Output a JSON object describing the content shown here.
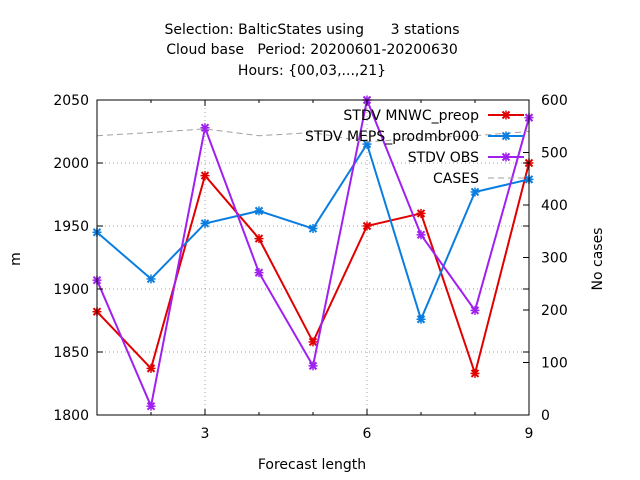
{
  "chart_data": {
    "type": "line",
    "title": [
      "Selection: BalticStates using      3 stations",
      "Cloud base   Period: 20200601-20200630",
      "Hours: {00,03,...,21}"
    ],
    "xlabel": "Forecast length",
    "ylabel": "m",
    "y2label": "No cases",
    "xlim": [
      1,
      9
    ],
    "ylim": [
      1800,
      2050
    ],
    "y2lim": [
      0,
      600
    ],
    "xticks": [
      "3",
      "6",
      "9"
    ],
    "yticks": [
      "1800",
      "1850",
      "1900",
      "1950",
      "2000",
      "2050"
    ],
    "y2ticks": [
      "0",
      "100",
      "200",
      "300",
      "400",
      "500",
      "600"
    ],
    "grid": true,
    "legend_position": "top-right",
    "x": [
      1,
      2,
      3,
      4,
      5,
      6,
      7,
      8,
      9
    ],
    "series": [
      {
        "name": "STDV MNWC_preop",
        "axis": "left",
        "color": "#e00000",
        "values": [
          1882,
          1837,
          1990,
          1940,
          1858,
          1950,
          1960,
          1833,
          2000
        ]
      },
      {
        "name": "STDV MEPS_prodmbr000",
        "axis": "left",
        "color": "#0a7ee0",
        "values": [
          1945,
          1908,
          1952,
          1962,
          1948,
          2015,
          1876,
          1977,
          1987
        ]
      },
      {
        "name": "STDV OBS",
        "axis": "left",
        "color": "#a020f0",
        "values": [
          1907,
          1807,
          2028,
          1913,
          1839,
          2050,
          1943,
          1883,
          2036
        ]
      },
      {
        "name": "CASES",
        "axis": "right",
        "color": "#a0a0a0",
        "dashed": true,
        "values": [
          532,
          538,
          545,
          532,
          538,
          520,
          528,
          532,
          540
        ]
      }
    ]
  }
}
